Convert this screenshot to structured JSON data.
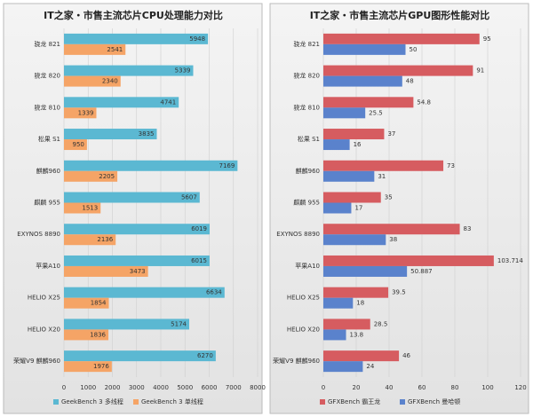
{
  "chart_data": [
    {
      "type": "bar",
      "orientation": "horizontal",
      "title": "IT之家・市售主流芯片CPU处理能力对比",
      "categories": [
        "骁龙 821",
        "骁龙 820",
        "骁龙 810",
        "松果 S1",
        "麒麟960",
        "麒麟 955",
        "EXYNOS 8890",
        "苹果A10",
        "HELIO X25",
        "HELIO X20",
        "荣耀V9 麒麟960"
      ],
      "series": [
        {
          "name": "GeekBench 3 多线程",
          "color": "#5bb8d2",
          "values": [
            5948,
            5339,
            4741,
            3835,
            7169,
            5607,
            6019,
            6015,
            6634,
            5174,
            6270
          ]
        },
        {
          "name": "GeekBench 3 单线程",
          "color": "#f5a466",
          "values": [
            2541,
            2340,
            1339,
            950,
            2205,
            1513,
            2136,
            3473,
            1854,
            1836,
            1976
          ]
        }
      ],
      "xlim": [
        0,
        8000
      ],
      "xticks": [
        0,
        1000,
        2000,
        3000,
        4000,
        5000,
        6000,
        7000,
        8000
      ],
      "grid": true,
      "legend": "bottom"
    },
    {
      "type": "bar",
      "orientation": "horizontal",
      "title": "IT之家・市售主流芯片GPU图形性能对比",
      "categories": [
        "骁龙 821",
        "骁龙 820",
        "骁龙 810",
        "松果 S1",
        "麒麟960",
        "麒麟 955",
        "EXYNOS 8890",
        "苹果A10",
        "HELIO X25",
        "HELIO X20",
        "荣耀V9 麒麟960"
      ],
      "series": [
        {
          "name": "GFXBench 霸王龙",
          "color": "#d65c60",
          "values": [
            95,
            91,
            54.8,
            37,
            73,
            35,
            83,
            103.714,
            39.5,
            28.5,
            46
          ]
        },
        {
          "name": "GFXBench 曼哈顿",
          "color": "#5a82cc",
          "values": [
            50,
            48,
            25.5,
            16,
            31,
            17,
            38,
            50.887,
            18,
            13.8,
            24
          ]
        }
      ],
      "xlim": [
        0,
        120
      ],
      "xticks": [
        0,
        20,
        40,
        60,
        80,
        100,
        120
      ],
      "grid": true,
      "legend": "bottom"
    }
  ]
}
